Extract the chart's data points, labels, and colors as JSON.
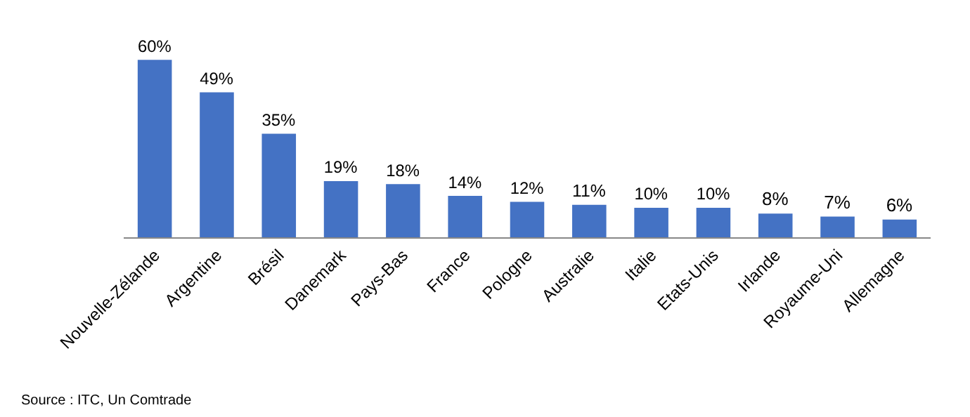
{
  "chart_data": {
    "type": "bar",
    "categories": [
      "Nouvelle-Zélande",
      "Argentine",
      "Brésil",
      "Danemark",
      "Pays-Bas",
      "France",
      "Pologne",
      "Australie",
      "Italie",
      "Etats-Unis",
      "Irlande",
      "Royaume-Uni",
      "Allemagne"
    ],
    "values": [
      60,
      49,
      35,
      19,
      18,
      14,
      12,
      11,
      10,
      10,
      8,
      7,
      6
    ],
    "value_labels": [
      "60%",
      "49%",
      "35%",
      "19%",
      "18%",
      "14%",
      "12%",
      "11%",
      "10%",
      "10%",
      "8%",
      "7%",
      "6%"
    ],
    "color": "#4472c4",
    "grid": false,
    "legend": false,
    "annotations": [
      "Source : ITC, Un Comtrade"
    ]
  }
}
